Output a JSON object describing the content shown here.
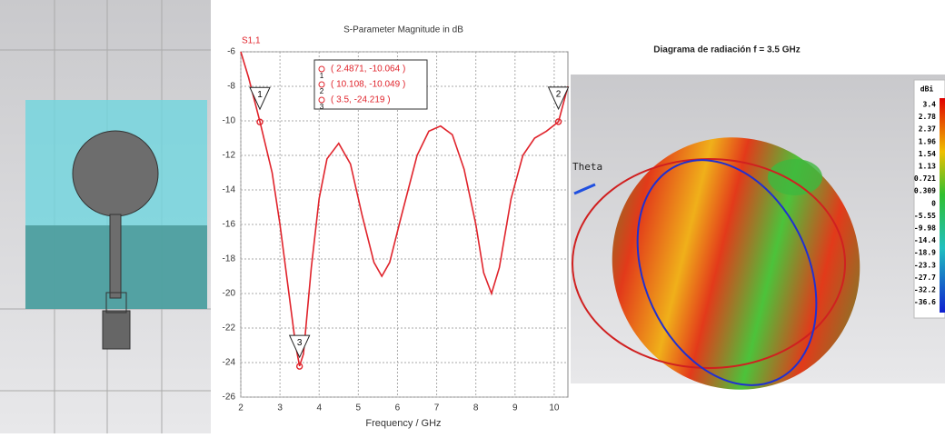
{
  "chart_data": {
    "type": "line",
    "title": "S-Parameter Magnitude in dB",
    "xlabel": "Frequency / GHz",
    "x": [
      2.0,
      2.2,
      2.49,
      2.8,
      3.0,
      3.2,
      3.4,
      3.5,
      3.6,
      3.8,
      4.0,
      4.2,
      4.5,
      4.8,
      5.1,
      5.4,
      5.6,
      5.8,
      6.1,
      6.5,
      6.8,
      7.1,
      7.4,
      7.7,
      8.0,
      8.2,
      8.4,
      8.6,
      8.9,
      9.2,
      9.5,
      9.8,
      10.11,
      10.35
    ],
    "series": [
      {
        "name": "S1,1",
        "color": "#e0242c",
        "values": [
          -6.0,
          -7.5,
          -10.06,
          -13.0,
          -16.0,
          -19.5,
          -23.0,
          -24.2,
          -23.5,
          -18.5,
          -14.5,
          -12.2,
          -11.3,
          -12.5,
          -15.5,
          -18.2,
          -19.0,
          -18.2,
          -15.5,
          -12.0,
          -10.6,
          -10.3,
          -10.8,
          -12.8,
          -16.0,
          -18.8,
          -20.0,
          -18.5,
          -14.5,
          -12.0,
          -11.0,
          -10.6,
          -10.05,
          -8.0
        ]
      }
    ],
    "markers": [
      {
        "label": "1",
        "x": 2.4871,
        "y": -10.064,
        "text": "( 2.4871, -10.064 )"
      },
      {
        "label": "2",
        "x": 10.108,
        "y": -10.049,
        "text": "( 10.108, -10.049 )"
      },
      {
        "label": "3",
        "x": 3.5,
        "y": -24.219,
        "text": "( 3.5, -24.219 )"
      }
    ],
    "xlim": [
      2,
      10.35
    ],
    "xticks": [
      2,
      3,
      4,
      5,
      6,
      7,
      8,
      9,
      10
    ],
    "ylim": [
      -26,
      -6
    ],
    "yticks": [
      -6,
      -8,
      -10,
      -12,
      -14,
      -16,
      -18,
      -20,
      -22,
      -24,
      -26
    ],
    "grid": true
  },
  "pattern": {
    "title": "Diagrama de radiación f = 3.5 GHz",
    "unit": "dBi",
    "axis_label": "Theta",
    "scale_labels": [
      "3.4",
      "2.78",
      "2.37",
      "1.96",
      "1.54",
      "1.13",
      "0.721",
      "0.309",
      "0",
      "-5.55",
      "-9.98",
      "-14.4",
      "-18.9",
      "-23.3",
      "-27.7",
      "-32.2",
      "-36.6"
    ]
  }
}
